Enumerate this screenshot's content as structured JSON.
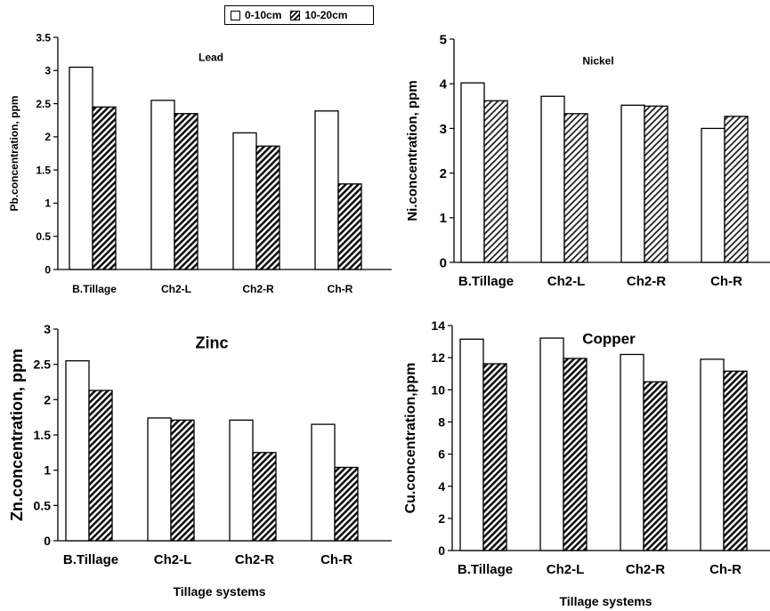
{
  "legend": {
    "series": [
      "0-10cm",
      "10-20cm"
    ]
  },
  "chart_data": [
    {
      "type": "bar",
      "title": "Lead",
      "ylabel": "Pb.concentration, ppm",
      "xlabel": "",
      "categories": [
        "B.Tillage",
        "Ch2-L",
        "Ch2-R",
        "Ch-R"
      ],
      "ylim": [
        0,
        3.5
      ],
      "yticks": [
        "0",
        "0.5",
        "1",
        "1.5",
        "2",
        "2.5",
        "3",
        "3.5"
      ],
      "series": [
        {
          "name": "0-10cm",
          "values": [
            3.05,
            2.55,
            2.06,
            2.39
          ]
        },
        {
          "name": "10-20cm",
          "values": [
            2.45,
            2.35,
            1.86,
            1.29
          ]
        }
      ]
    },
    {
      "type": "bar",
      "title": "Nickel",
      "ylabel": "Ni.concentration, ppm",
      "xlabel": "",
      "categories": [
        "B.Tillage",
        "Ch2-L",
        "Ch2-R",
        "Ch-R"
      ],
      "ylim": [
        0,
        5
      ],
      "yticks": [
        "0",
        "1",
        "2",
        "3",
        "4",
        "5"
      ],
      "series": [
        {
          "name": "0-10cm",
          "values": [
            4.02,
            3.72,
            3.52,
            3.0
          ]
        },
        {
          "name": "10-20cm",
          "values": [
            3.62,
            3.33,
            3.5,
            3.27
          ]
        }
      ]
    },
    {
      "type": "bar",
      "title": "Zinc",
      "ylabel": "Zn.concentration, ppm",
      "xlabel": "Tillage systems",
      "categories": [
        "B.Tillage",
        "Ch2-L",
        "Ch2-R",
        "Ch-R"
      ],
      "ylim": [
        0,
        3
      ],
      "yticks": [
        "0",
        "0.5",
        "1",
        "1.5",
        "2",
        "2.5",
        "3"
      ],
      "series": [
        {
          "name": "0-10cm",
          "values": [
            2.55,
            1.74,
            1.71,
            1.65
          ]
        },
        {
          "name": "10-20cm",
          "values": [
            2.13,
            1.71,
            1.25,
            1.04
          ]
        }
      ]
    },
    {
      "type": "bar",
      "title": "Copper",
      "ylabel": "Cu.concentration,ppm",
      "xlabel": "Tillage systems",
      "categories": [
        "B.Tillage",
        "Ch2-L",
        "Ch2-R",
        "Ch-R"
      ],
      "ylim": [
        0,
        14
      ],
      "yticks": [
        "0",
        "2",
        "4",
        "6",
        "8",
        "10",
        "12",
        "14"
      ],
      "series": [
        {
          "name": "0-10cm",
          "values": [
            13.15,
            13.22,
            12.2,
            11.9
          ]
        },
        {
          "name": "10-20cm",
          "values": [
            11.62,
            11.95,
            10.5,
            11.16
          ]
        }
      ]
    }
  ]
}
